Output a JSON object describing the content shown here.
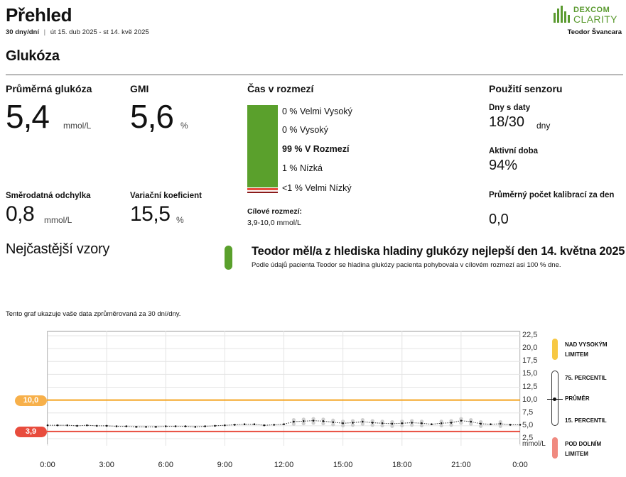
{
  "header": {
    "title": "Přehled",
    "period_bold": "30 dny/dní",
    "period_sep": "|",
    "period_range": "út 15. dub 2025 - st 14. kvě 2025",
    "brand_top": "DEXCOM",
    "brand_bottom": "CLARITY",
    "patient": "Teodor Švancara"
  },
  "section_title": "Glukóza",
  "metrics": {
    "avg_label": "Průměrná glukóza",
    "avg_value": "5,4",
    "avg_unit": "mmol/L",
    "gmi_label": "GMI",
    "gmi_value": "5,6",
    "gmi_unit": "%",
    "sd_label": "Směrodatná odchylka",
    "sd_value": "0,8",
    "sd_unit": "mmol/L",
    "cv_label": "Variační koeficient",
    "cv_value": "15,5",
    "cv_unit": "%"
  },
  "time_in_range": {
    "label": "Čas v rozmezí",
    "items": [
      {
        "text": "0 % Velmi Vysoký",
        "pct": 0,
        "color": "#f4a21b"
      },
      {
        "text": "0 % Vysoký",
        "pct": 0,
        "color": "#f7c843"
      },
      {
        "text": "99 % V Rozmezí",
        "pct": 99,
        "color": "#5aa02c"
      },
      {
        "text": "1 % Nízká",
        "pct": 1,
        "color": "#e84c3d"
      },
      {
        "text": "<1 % Velmi Nízký",
        "pct": 0.3,
        "color": "#8b1a1a"
      }
    ],
    "target_label": "Cílové rozmezí:",
    "target_value": "3,9-10,0 mmol/L"
  },
  "sensor": {
    "label": "Použití senzoru",
    "days_label": "Dny s daty",
    "days_value": "18/30",
    "days_unit": "dny",
    "active_label": "Aktivní doba",
    "active_value": "94%",
    "calib_label": "Průměrný počet kalibrací za den",
    "calib_value": "0,0"
  },
  "patterns": {
    "label": "Nejčastější vzory",
    "title": "Teodor měl/a z hlediska hladiny glukózy nejlepší den 14. května 2025",
    "subtitle": "Podle údajů pacienta Teodor se hladina glukózy pacienta pohybovala v cílovém rozmezí asi 100 % dne."
  },
  "chart_note": "Tento graf ukazuje vaše data zprůměrovaná za 30 dní/dny.",
  "chart_data": {
    "type": "line",
    "x_ticks": [
      "0:00",
      "3:00",
      "6:00",
      "9:00",
      "12:00",
      "15:00",
      "18:00",
      "21:00",
      "0:00"
    ],
    "y_ticks": [
      "22,5",
      "20,0",
      "17,5",
      "15,0",
      "12,5",
      "10,0",
      "7,5",
      "5,0",
      "2,5"
    ],
    "y_unit": "mmol/L",
    "ylim": [
      0,
      22.5
    ],
    "xlim": [
      0,
      24
    ],
    "high_limit": 10.0,
    "low_limit": 3.9,
    "high_label": "10,0",
    "low_label": "3,9",
    "series": [
      {
        "name": "PRŮMĚR",
        "x": [
          0,
          0.5,
          1,
          1.5,
          2,
          2.5,
          3,
          3.5,
          4,
          4.5,
          5,
          5.5,
          6,
          6.5,
          7,
          7.5,
          8,
          8.5,
          9,
          9.5,
          10,
          10.5,
          11,
          11.5,
          12,
          12.5,
          13,
          13.5,
          14,
          14.5,
          15,
          15.5,
          16,
          16.5,
          17,
          17.5,
          18,
          18.5,
          19,
          19.5,
          20,
          20.5,
          21,
          21.5,
          22,
          22.5,
          23,
          23.5,
          24
        ],
        "values": [
          5.1,
          5.1,
          5.1,
          5.0,
          5.1,
          5.0,
          5.0,
          4.9,
          4.9,
          4.8,
          4.8,
          4.8,
          4.9,
          4.9,
          4.9,
          4.8,
          4.9,
          5.0,
          5.1,
          5.2,
          5.3,
          5.3,
          5.1,
          5.2,
          5.3,
          5.8,
          5.9,
          6.0,
          5.9,
          5.7,
          5.5,
          5.6,
          5.8,
          5.6,
          5.5,
          5.4,
          5.5,
          5.6,
          5.5,
          5.3,
          5.5,
          5.6,
          6.0,
          5.8,
          5.4,
          5.3,
          5.4,
          5.2,
          5.2
        ]
      }
    ],
    "legend": {
      "high": "NAD VYSOKÝM LIMITEM",
      "p75": "75. PERCENTIL",
      "mean": "PRŮMĚR",
      "p15": "15. PERCENTIL",
      "low": "POD DOLNÍM LIMITEM"
    },
    "colors": {
      "high": "#f7c843",
      "low": "#f08a80",
      "high_line": "#f4a21b",
      "low_line": "#e84c3d"
    }
  }
}
